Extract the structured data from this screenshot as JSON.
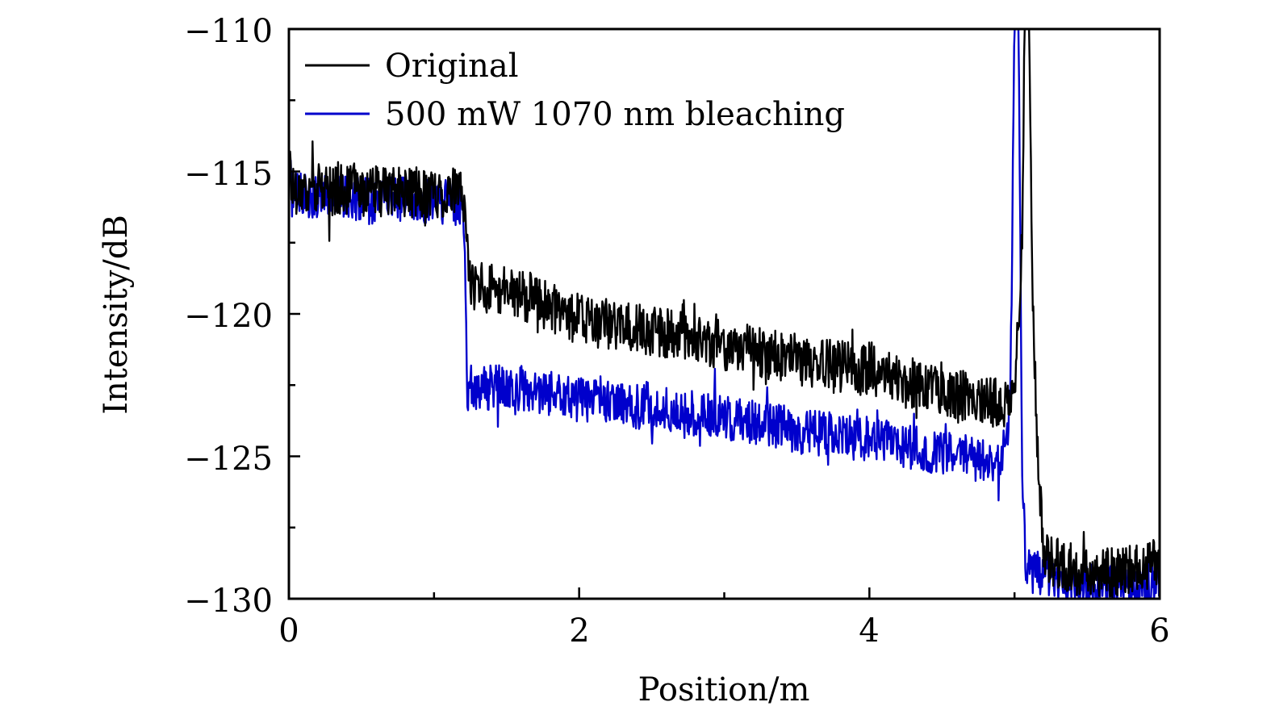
{
  "chart_data": {
    "type": "line",
    "title": "",
    "xlabel": "Position/m",
    "ylabel": "Intensity/dB",
    "xlim": [
      0,
      6
    ],
    "ylim": [
      -130,
      -110
    ],
    "x_ticks": [
      0,
      2,
      4,
      6
    ],
    "x_tick_labels": [
      "0",
      "2",
      "4",
      "6"
    ],
    "x_minor_ticks": [
      1,
      3,
      5
    ],
    "y_ticks": [
      -130,
      -125,
      -120,
      -115,
      -110
    ],
    "y_tick_labels": [
      "−130",
      "−125",
      "−120",
      "−115",
      "−110"
    ],
    "y_minor_ticks": [
      -127.5,
      -122.5,
      -117.5,
      -112.5
    ],
    "grid": false,
    "legend_position": "top-left",
    "series": [
      {
        "name": "Original",
        "color": "#000000",
        "noise_amplitude_db": 0.9,
        "seed": 17,
        "control_points": [
          [
            0.0,
            -114.0
          ],
          [
            0.02,
            -115.6
          ],
          [
            1.2,
            -115.8
          ],
          [
            1.21,
            -116.2
          ],
          [
            1.25,
            -119.0
          ],
          [
            1.6,
            -119.3
          ],
          [
            2.0,
            -120.2
          ],
          [
            2.5,
            -120.6
          ],
          [
            3.0,
            -121.1
          ],
          [
            3.5,
            -121.6
          ],
          [
            4.0,
            -122.0
          ],
          [
            4.5,
            -122.7
          ],
          [
            4.95,
            -123.2
          ],
          [
            5.0,
            -122.5
          ],
          [
            5.05,
            -118.0
          ],
          [
            5.07,
            -110.0
          ],
          [
            5.1,
            -110.0
          ],
          [
            5.12,
            -118.0
          ],
          [
            5.15,
            -124.0
          ],
          [
            5.2,
            -128.5
          ],
          [
            5.5,
            -129.2
          ],
          [
            6.0,
            -128.8
          ]
        ]
      },
      {
        "name": "500 mW 1070 nm bleaching",
        "color": "#0000CC",
        "noise_amplitude_db": 0.8,
        "seed": 71,
        "control_points": [
          [
            0.0,
            -114.5
          ],
          [
            0.02,
            -115.8
          ],
          [
            1.2,
            -116.1
          ],
          [
            1.21,
            -117.5
          ],
          [
            1.23,
            -122.6
          ],
          [
            1.6,
            -122.6
          ],
          [
            2.0,
            -123.0
          ],
          [
            2.5,
            -123.3
          ],
          [
            3.0,
            -123.6
          ],
          [
            3.5,
            -124.1
          ],
          [
            4.0,
            -124.4
          ],
          [
            4.5,
            -124.9
          ],
          [
            4.9,
            -125.2
          ],
          [
            4.97,
            -123.5
          ],
          [
            5.0,
            -110.0
          ],
          [
            5.03,
            -110.0
          ],
          [
            5.05,
            -125.0
          ],
          [
            5.08,
            -129.0
          ],
          [
            5.5,
            -129.6
          ],
          [
            6.0,
            -129.5
          ]
        ]
      }
    ]
  }
}
